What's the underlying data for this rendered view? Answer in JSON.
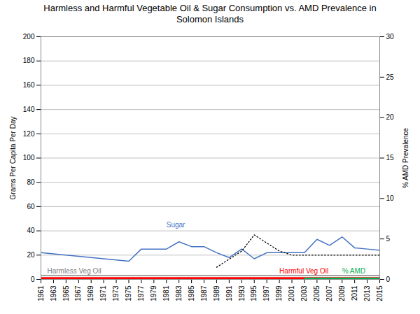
{
  "chart_data": {
    "type": "line",
    "title": "Harmless and Harmful Vegetable Oil & Sugar Consumption vs. AMD Prevalence in\nSolomon Islands",
    "ylabel": "Grams Per Capita Per Day",
    "y2label": "% AMD Prevalence",
    "x": [
      1961,
      1963,
      1965,
      1967,
      1969,
      1971,
      1973,
      1975,
      1977,
      1979,
      1981,
      1983,
      1985,
      1987,
      1989,
      1991,
      1993,
      1995,
      1997,
      1999,
      2001,
      2003,
      2005,
      2007,
      2009,
      2011,
      2013,
      2015
    ],
    "xlim": [
      1961,
      2015
    ],
    "xticks": [
      1961,
      1963,
      1965,
      1967,
      1969,
      1971,
      1973,
      1975,
      1977,
      1979,
      1981,
      1983,
      1985,
      1987,
      1989,
      1991,
      1993,
      1995,
      1997,
      1999,
      2001,
      2003,
      2005,
      2007,
      2009,
      2011,
      2013,
      2015
    ],
    "ylim": [
      0,
      200
    ],
    "yticks": [
      0,
      20,
      40,
      60,
      80,
      100,
      120,
      140,
      160,
      180,
      200
    ],
    "y2lim": [
      0,
      30
    ],
    "y2ticks": [
      0,
      5,
      10,
      15,
      20,
      25,
      30
    ],
    "grid": true,
    "series": [
      {
        "name": "Sugar",
        "color": "#4472C4",
        "values": [
          22,
          21,
          20,
          19,
          18,
          17,
          16,
          15,
          25,
          25,
          25,
          31,
          27,
          27,
          22,
          18,
          25,
          17,
          22,
          22,
          22,
          22,
          33,
          28,
          35,
          26,
          25,
          24
        ]
      },
      {
        "name": "Harmful Veg Oil",
        "color": "#FF0000",
        "values": [
          1,
          1,
          1,
          1,
          1,
          1,
          1,
          1,
          1,
          1,
          1,
          1,
          1,
          1,
          1,
          1,
          1,
          1,
          1,
          1,
          1,
          1,
          1,
          1,
          1,
          1,
          1,
          1
        ]
      },
      {
        "name": "Harmless Veg Oil",
        "color": "#7F7F7F",
        "values": [
          3,
          3,
          3,
          3,
          3,
          3,
          3,
          3,
          3,
          3,
          3,
          3,
          3,
          3,
          3,
          3,
          3,
          3,
          3,
          3,
          3,
          3,
          3,
          3,
          3,
          3,
          3,
          3
        ]
      },
      {
        "axis": "y2",
        "color": "#000000",
        "line_style": "dotted",
        "x": [
          1989,
          1991,
          1993,
          1995,
          1997,
          1999,
          2001,
          2003,
          2005,
          2007,
          2009,
          2011,
          2013,
          2015
        ],
        "values": [
          1.5,
          2.5,
          3.5,
          5.5,
          4.5,
          3.5,
          3.0,
          3.0,
          3.0,
          3.0,
          3.0,
          3.0,
          3.0,
          3.0
        ]
      },
      {
        "type": "area",
        "color": "#00B050",
        "x": [
          2003,
          2015
        ],
        "values": [
          1.2,
          1.2
        ]
      }
    ],
    "annotations": [
      {
        "text": "Sugar",
        "x": 1981,
        "y": 43,
        "color": "#4472C4"
      },
      {
        "text": "Harmless Veg Oil",
        "x": 1962,
        "y": 5,
        "color": "#7F7F7F"
      },
      {
        "text": "Harmful Veg Oil",
        "x": 1999,
        "y": 5,
        "color": "#FF0000"
      },
      {
        "text": "% AMD",
        "x": 2009,
        "y": 5,
        "color": "#00B050"
      }
    ]
  }
}
